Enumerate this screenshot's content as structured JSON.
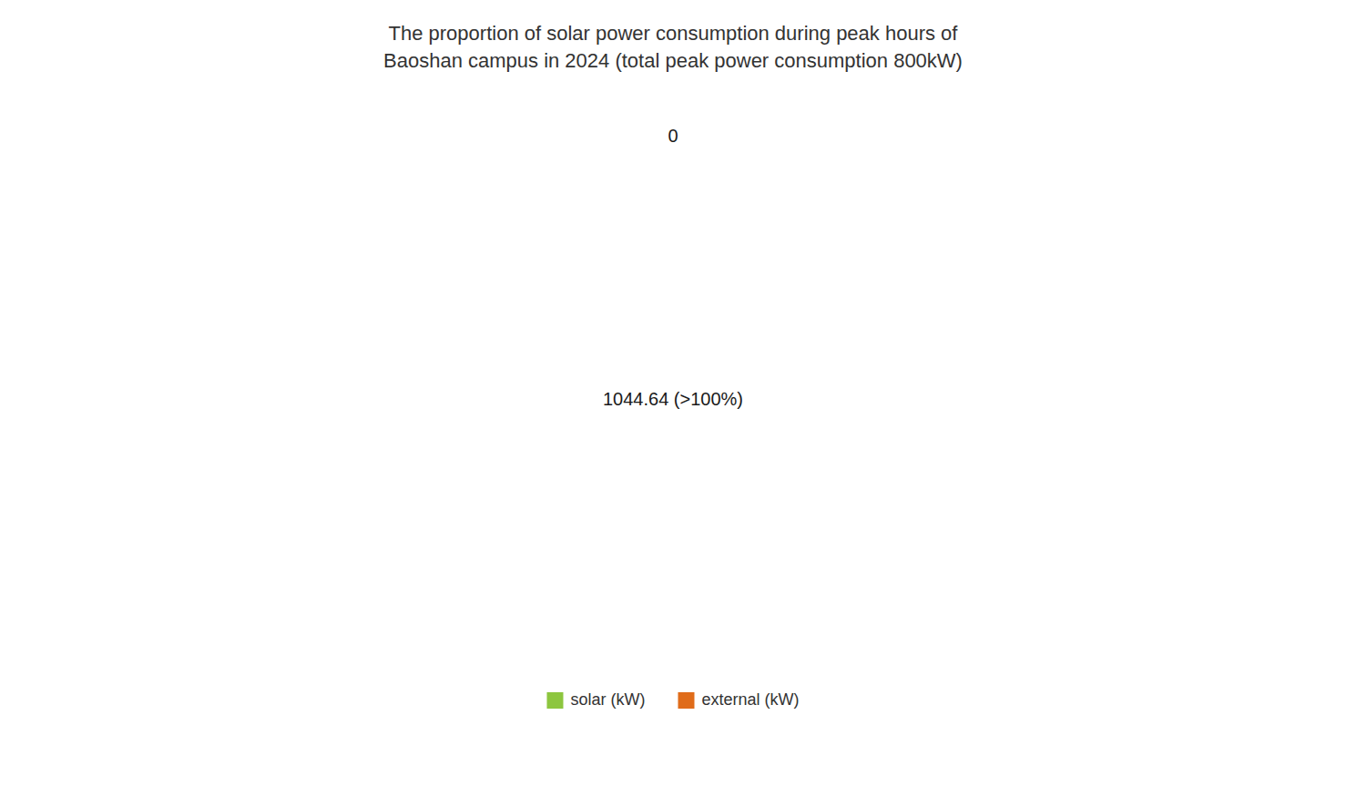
{
  "chart_data": {
    "type": "pie",
    "title": "The proportion of solar power consumption during peak hours of\nBaoshan campus in 2024 (total peak power consumption 800kW)",
    "categories": [
      "solar (kW)",
      "external (kW)"
    ],
    "values": [
      1044.64,
      0.0001
    ],
    "value_labels": [
      "1044.64 (>100%)",
      "0"
    ],
    "colors": [
      "#8dc63f",
      "#e06c1a"
    ],
    "data_labels": true,
    "legend": "bottom"
  }
}
